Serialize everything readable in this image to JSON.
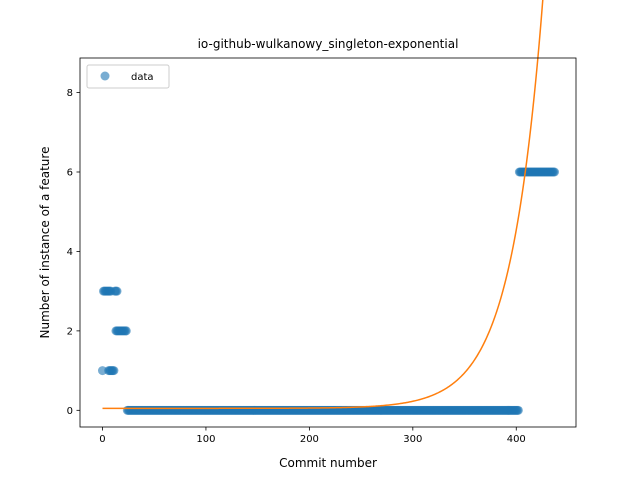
{
  "chart_data": {
    "type": "scatter",
    "title": "io-github-wulkanowy_singleton-exponential",
    "xlabel": "Commit number",
    "ylabel": "Number of instance of a feature",
    "xlim": [
      -21.75,
      457.75
    ],
    "ylim": [
      -0.42,
      8.87
    ],
    "xticks": [
      0,
      100,
      200,
      300,
      400
    ],
    "yticks": [
      0,
      2,
      4,
      6,
      8
    ],
    "grid": false,
    "legend_position": "upper-left",
    "colors": {
      "data": "#1f77b4",
      "fit": "#ff7f0e"
    },
    "series": [
      {
        "name": "data",
        "kind": "scatter",
        "segments": [
          {
            "x_start": 0,
            "x_end": 0,
            "y": 1
          },
          {
            "x_start": 1,
            "x_end": 8,
            "y": 3
          },
          {
            "x_start": 6,
            "x_end": 11,
            "y": 1
          },
          {
            "x_start": 12,
            "x_end": 14,
            "y": 3
          },
          {
            "x_start": 13,
            "x_end": 23,
            "y": 2
          },
          {
            "x_start": 24,
            "x_end": 402,
            "y": 0
          },
          {
            "x_start": 403,
            "x_end": 437,
            "y": 6
          }
        ]
      },
      {
        "name": "",
        "kind": "line",
        "model": "exponential",
        "params": {
          "a": 1.1e-05,
          "b": 0.0323,
          "c": 0.05
        },
        "x_range": [
          0,
          437
        ]
      }
    ],
    "legend": [
      {
        "label": "data",
        "marker": "circle"
      }
    ]
  }
}
